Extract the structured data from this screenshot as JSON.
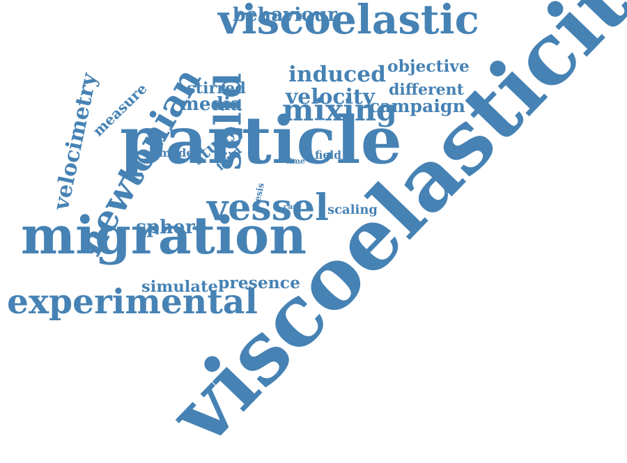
{
  "color": "#4682B4",
  "words": [
    {
      "id": "viscoelasticity",
      "text": "viscoelasticity",
      "weight": 10
    },
    {
      "id": "particle",
      "text": "particle",
      "weight": 9
    },
    {
      "id": "migration",
      "text": "migration",
      "weight": 8
    },
    {
      "id": "newtonian",
      "text": "newtonian",
      "weight": 7
    },
    {
      "id": "viscoelastic",
      "text": "viscoelastic",
      "weight": 7
    },
    {
      "id": "vessel",
      "text": "vessel",
      "weight": 6
    },
    {
      "id": "experimental",
      "text": "experimental",
      "weight": 5
    },
    {
      "id": "solid",
      "text": "solid",
      "weight": 5
    },
    {
      "id": "mixing",
      "text": "mixing",
      "weight": 5
    },
    {
      "id": "induced",
      "text": "induced",
      "weight": 4
    },
    {
      "id": "velocity",
      "text": "velocity",
      "weight": 4
    },
    {
      "id": "behaviour",
      "text": "behaviour",
      "weight": 3
    },
    {
      "id": "objective",
      "text": "objective",
      "weight": 3
    },
    {
      "id": "different",
      "text": "different",
      "weight": 3
    },
    {
      "id": "campaign",
      "text": "campaign",
      "weight": 3
    },
    {
      "id": "stirred",
      "text": "stirred",
      "weight": 3
    },
    {
      "id": "media",
      "text": "media",
      "weight": 3
    },
    {
      "id": "study",
      "text": "study",
      "weight": 3
    },
    {
      "id": "sphere",
      "text": "sphere",
      "weight": 3
    },
    {
      "id": "simulate",
      "text": "simulate",
      "weight": 3
    },
    {
      "id": "presence",
      "text": "presence",
      "weight": 3
    },
    {
      "id": "velocimetry",
      "text": "velocimetry",
      "weight": 3
    },
    {
      "id": "measure",
      "text": "measure",
      "weight": 2
    },
    {
      "id": "scaling",
      "text": "scaling",
      "weight": 2
    },
    {
      "id": "model",
      "text": "model",
      "weight": 2
    },
    {
      "id": "fluid",
      "text": "fluid",
      "weight": 2
    },
    {
      "id": "field",
      "text": "field",
      "weight": 2
    },
    {
      "id": "time",
      "text": "time",
      "weight": 1
    },
    {
      "id": "thesis",
      "text": "thesis",
      "weight": 1
    },
    {
      "id": "case",
      "text": "case",
      "weight": 1
    }
  ]
}
